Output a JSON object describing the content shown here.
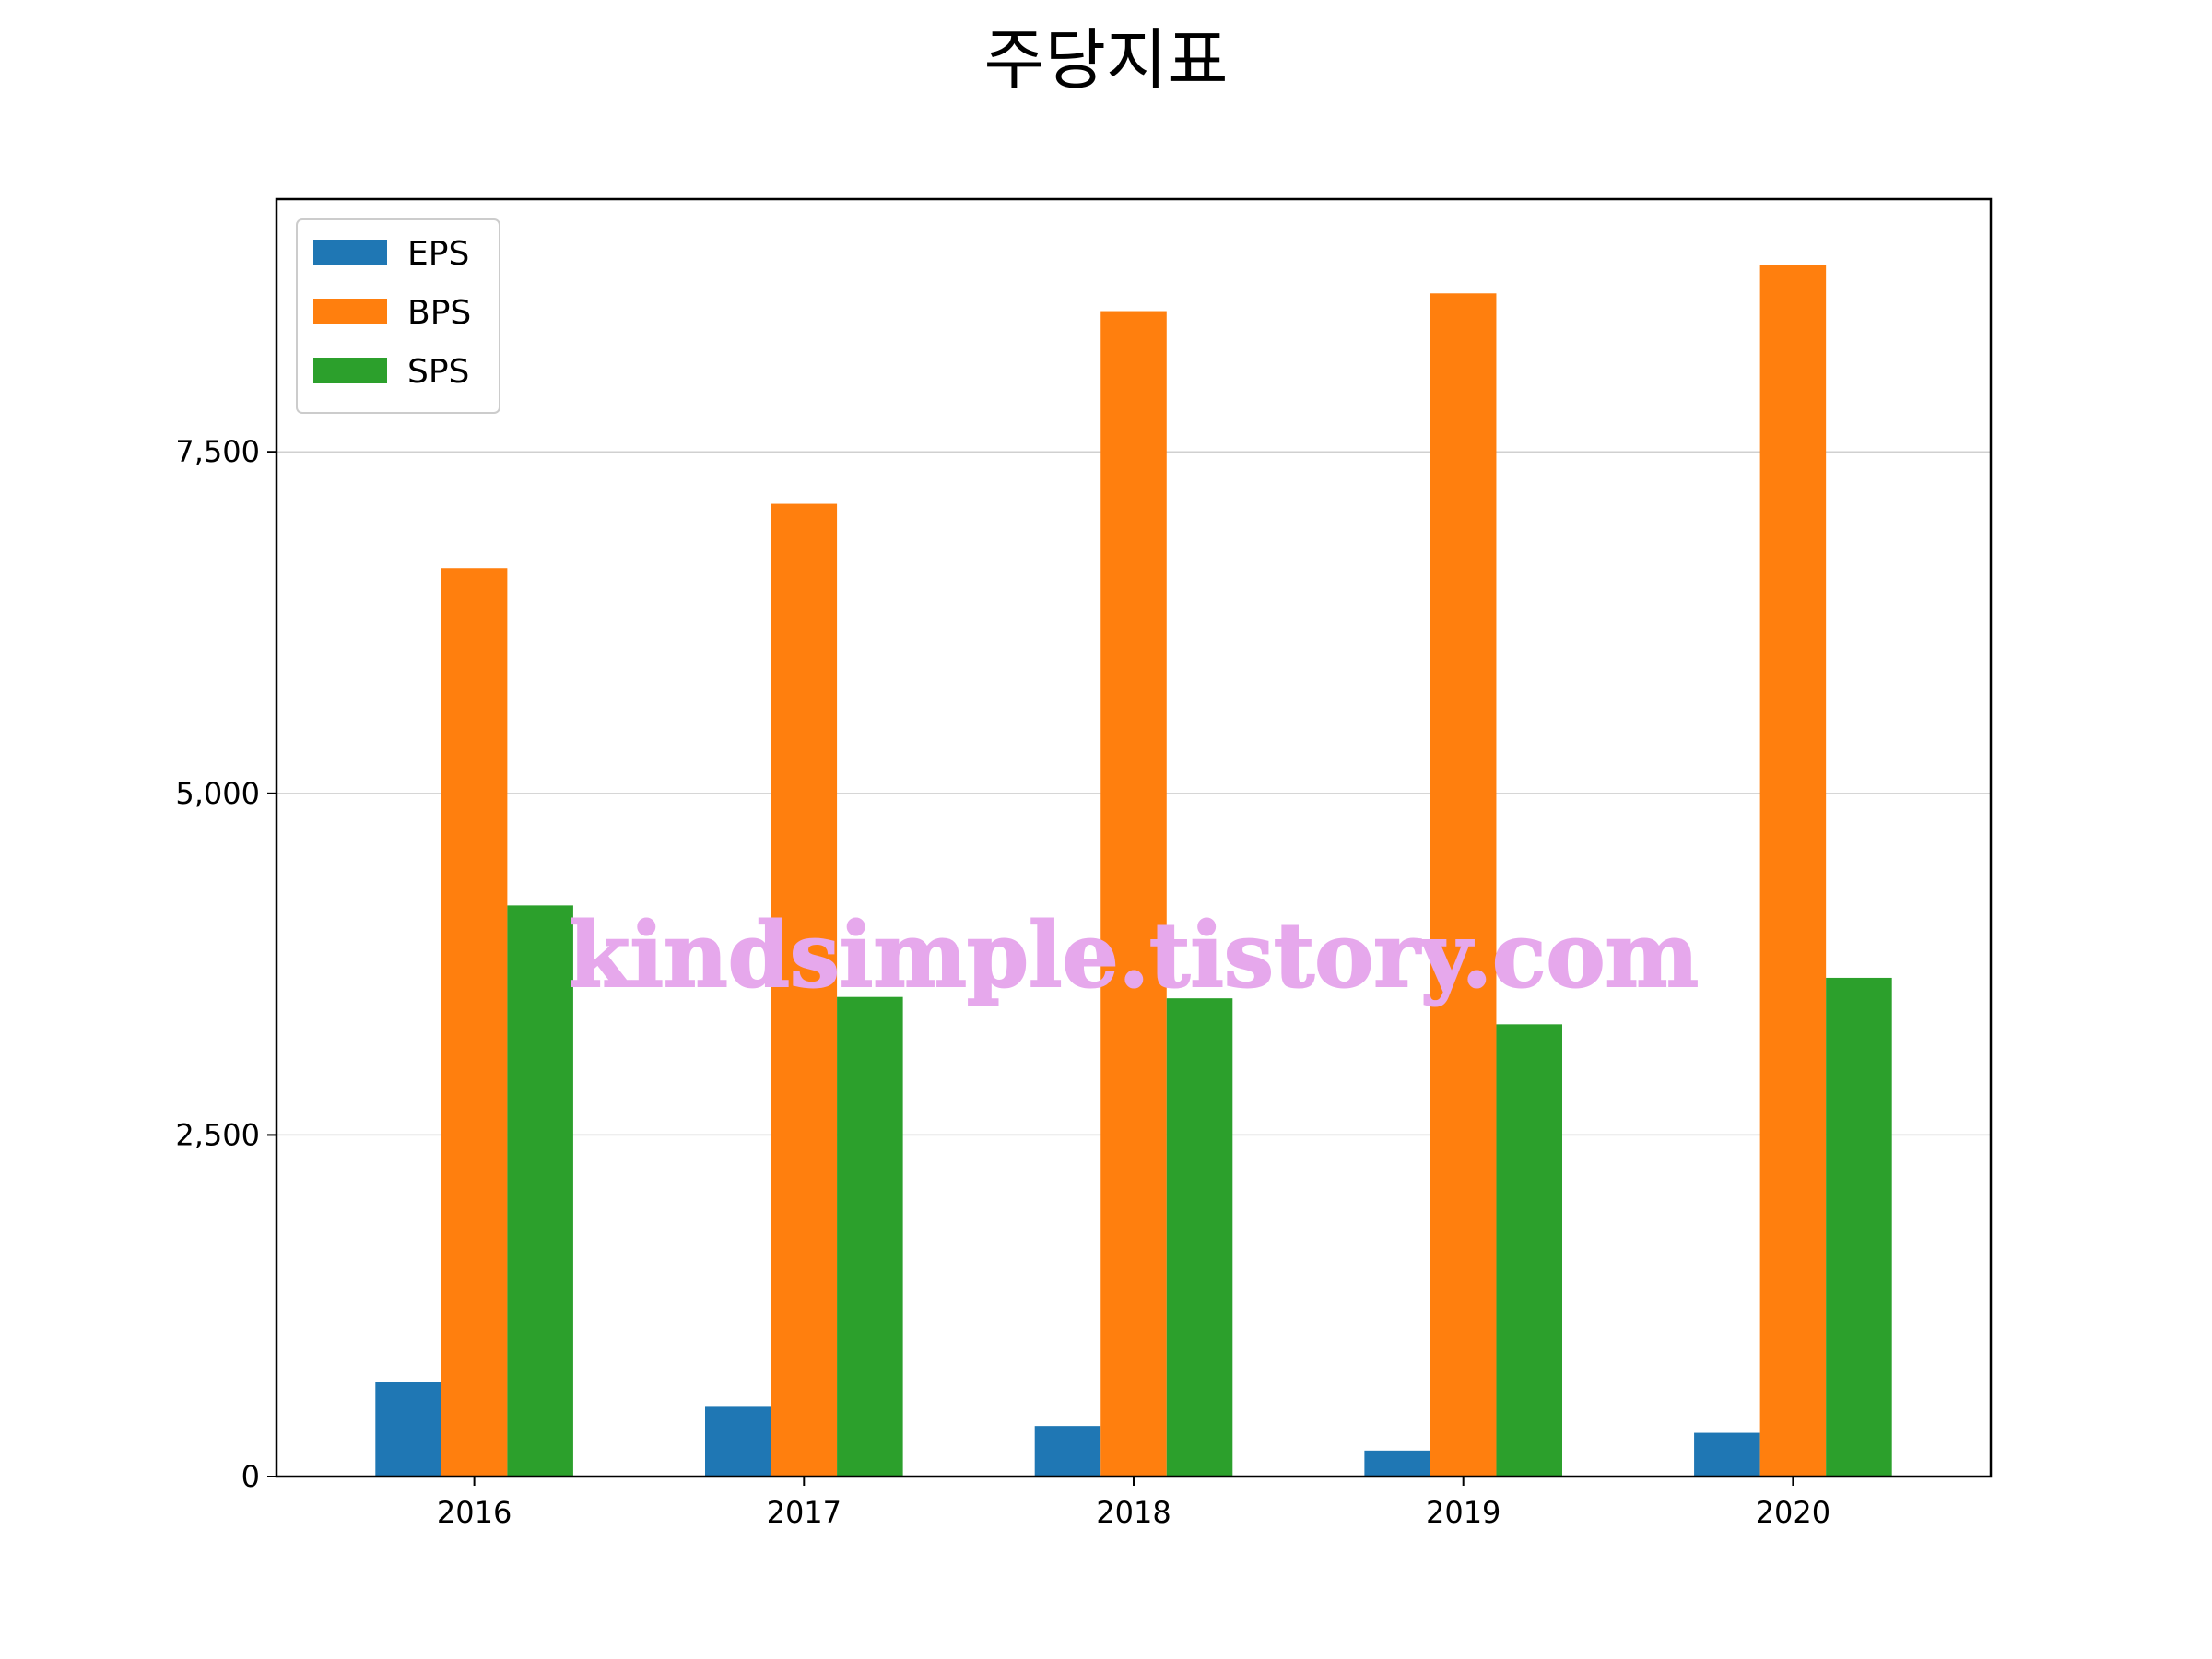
{
  "chart_data": {
    "type": "bar",
    "title": "주당지표",
    "xlabel": "",
    "ylabel": "",
    "categories": [
      "2016",
      "2017",
      "2018",
      "2019",
      "2020"
    ],
    "series": [
      {
        "name": "EPS",
        "color": "#1f77b4",
        "values": [
          690,
          510,
          370,
          190,
          320
        ]
      },
      {
        "name": "BPS",
        "color": "#ff7f0e",
        "values": [
          6650,
          7120,
          8530,
          8660,
          8870
        ]
      },
      {
        "name": "SPS",
        "color": "#2ca02c",
        "values": [
          4180,
          3510,
          3500,
          3310,
          3650
        ]
      }
    ],
    "ylim": [
      0,
      9350
    ],
    "yticks": [
      0,
      2500,
      5000,
      7500
    ],
    "ytick_labels": [
      "0",
      "2,500",
      "5,000",
      "7,500"
    ],
    "grid": "y",
    "legend_position": "top-left"
  },
  "watermark": "kindsimple.tistory.com"
}
